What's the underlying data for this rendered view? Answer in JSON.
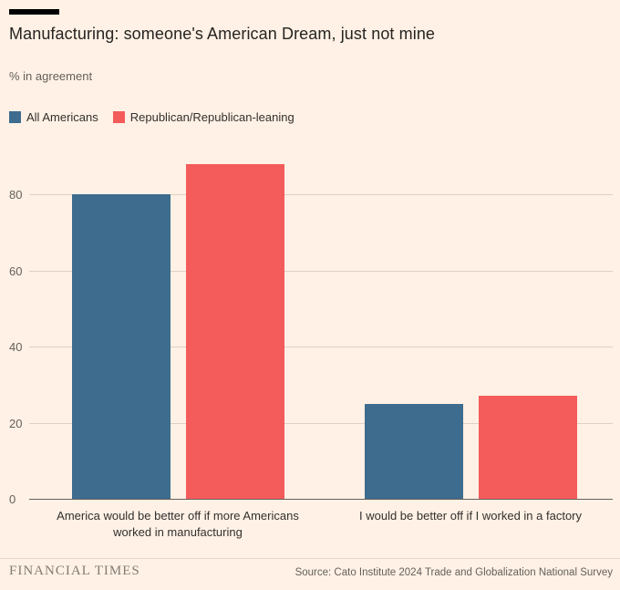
{
  "header": {
    "title": "Manufacturing: someone's American Dream, just not mine",
    "subtitle": "% in agreement"
  },
  "legend": [
    {
      "label": "All Americans",
      "color": "#3d6c8e"
    },
    {
      "label": "Republican/Republican-leaning",
      "color": "#f45b5b"
    }
  ],
  "colors": {
    "background": "#fff1e5",
    "gridline": "#ddd1c5",
    "axis": "#66605c",
    "accent_rule": "#000000"
  },
  "chart_data": {
    "type": "bar",
    "title": "Manufacturing: someone's American Dream, just not mine",
    "ylabel": "% in agreement",
    "categories": [
      "America would be better off if more Americans\nworked in manufacturing",
      "I would be better off if I worked in a factory"
    ],
    "series": [
      {
        "name": "All Americans",
        "color": "#3d6c8e",
        "values": [
          80,
          25
        ]
      },
      {
        "name": "Republican/Republican-leaning",
        "color": "#f45b5b",
        "values": [
          88,
          27
        ]
      }
    ],
    "yticks": [
      0,
      20,
      40,
      60,
      80
    ],
    "ylim": [
      0,
      91
    ],
    "grid": true,
    "legend_position": "top-left"
  },
  "footer": {
    "brand": "FINANCIAL TIMES",
    "source": "Source: Cato Institute 2024 Trade and Globalization National Survey"
  }
}
